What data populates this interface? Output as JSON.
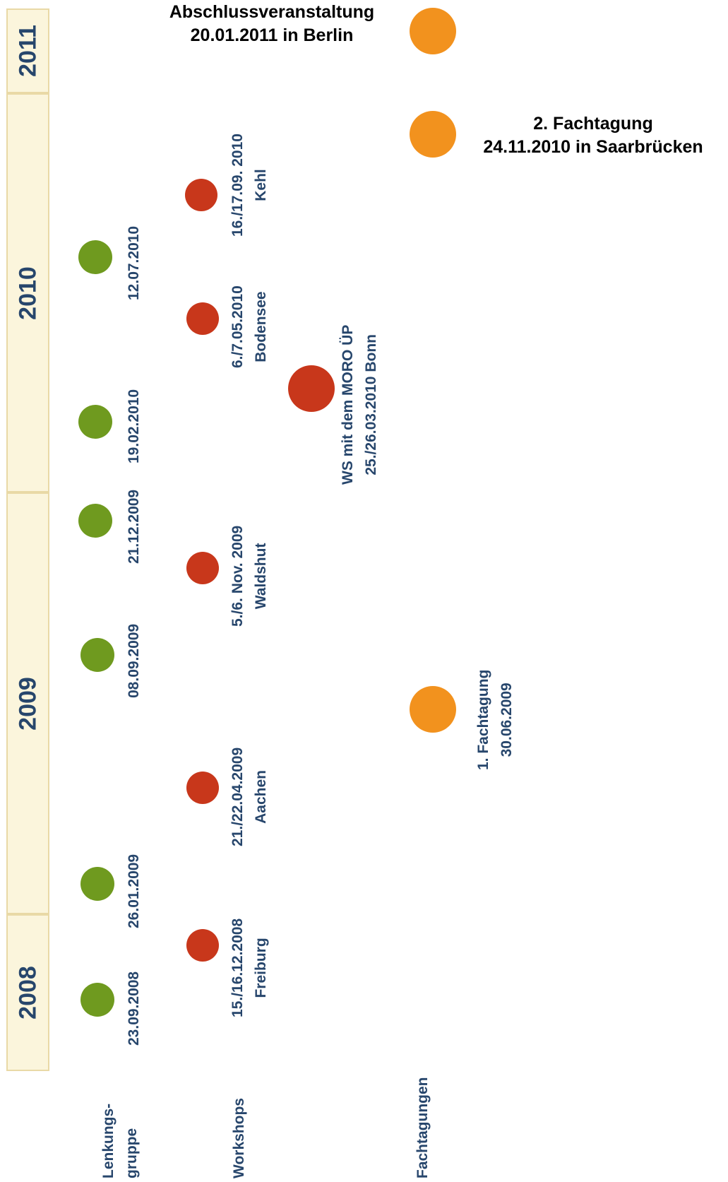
{
  "years": [
    "2011",
    "2010",
    "2009",
    "2008"
  ],
  "rows": {
    "lenkungsgruppe": [
      "Lenkungs-",
      "gruppe"
    ],
    "workshops": "Workshops",
    "fachtagungen": "Fachtagungen"
  },
  "lenkungsgruppe_dates": [
    "12.07.2010",
    "19.02.2010",
    "21.12.2009",
    "08.09.2009",
    "26.01.2009",
    "23.09.2008"
  ],
  "workshops": [
    {
      "date": "16./17.09. 2010",
      "place": "Kehl"
    },
    {
      "date": "6./7.05.2010",
      "place": "Bodensee"
    },
    {
      "date": "5./6. Nov. 2009",
      "place": "Waldshut"
    },
    {
      "date": "21./22.04.2009",
      "place": "Aachen"
    },
    {
      "date": "15./16.12.2008",
      "place": "Freiburg"
    }
  ],
  "moro_ws": {
    "line1": "WS mit dem MORO ÜP",
    "line2": "25./26.03.2010 Bonn"
  },
  "fachtagungen": {
    "abschluss": {
      "line1": "Abschlussveranstaltung",
      "line2": "20.01.2011 in Berlin"
    },
    "second": {
      "line1": "2. Fachtagung",
      "line2": "24.11.2010 in Saarbrücken"
    },
    "first": {
      "line1": "1. Fachtagung",
      "line2": "30.06.2009"
    }
  },
  "colors": {
    "lenkungsgruppe": "#6f9a1f",
    "workshops": "#c8371b",
    "fachtagungen": "#f2921e",
    "text": "#27466c",
    "year_bar": "#fbf5dc"
  }
}
